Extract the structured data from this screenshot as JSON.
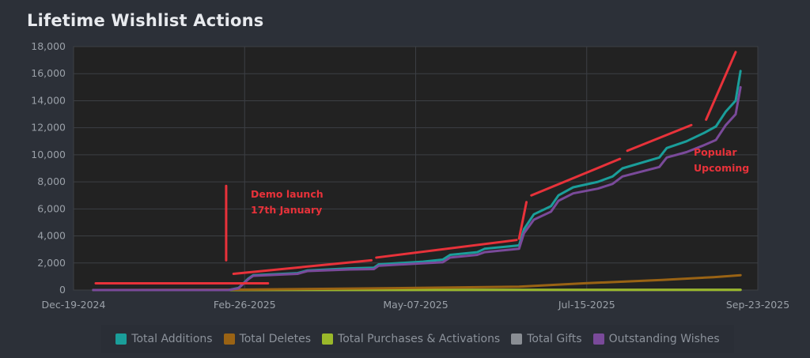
{
  "title": "Lifetime Wishlist Actions",
  "chart_data": {
    "type": "line",
    "title": "Lifetime Wishlist Actions",
    "y_ticks": [
      "0",
      "2,000",
      "4,000",
      "6,000",
      "8,000",
      "10,000",
      "12,000",
      "14,000",
      "16,000",
      "18,000"
    ],
    "ylim": [
      0,
      18000
    ],
    "x_ticks": [
      "Dec-19-2024",
      "Feb-26-2025",
      "May-07-2025",
      "Jul-15-2025",
      "Sep-23-2025"
    ],
    "xlim": [
      "2024-12-19",
      "2025-09-23"
    ],
    "grid": true,
    "legend_position": "bottom",
    "series": [
      {
        "name": "Total Additions",
        "color": "#1a9e9a",
        "points": [
          [
            "2024-12-27",
            0
          ],
          [
            "2025-02-20",
            0
          ],
          [
            "2025-02-24",
            150
          ],
          [
            "2025-02-28",
            850
          ],
          [
            "2025-03-02",
            1100
          ],
          [
            "2025-03-20",
            1250
          ],
          [
            "2025-03-24",
            1450
          ],
          [
            "2025-04-10",
            1600
          ],
          [
            "2025-04-20",
            1650
          ],
          [
            "2025-04-22",
            1900
          ],
          [
            "2025-05-10",
            2100
          ],
          [
            "2025-05-18",
            2250
          ],
          [
            "2025-05-21",
            2600
          ],
          [
            "2025-06-01",
            2800
          ],
          [
            "2025-06-04",
            3050
          ],
          [
            "2025-06-18",
            3300
          ],
          [
            "2025-06-20",
            4500
          ],
          [
            "2025-06-24",
            5600
          ],
          [
            "2025-07-01",
            6200
          ],
          [
            "2025-07-04",
            7000
          ],
          [
            "2025-07-10",
            7600
          ],
          [
            "2025-07-20",
            8000
          ],
          [
            "2025-07-26",
            8400
          ],
          [
            "2025-07-30",
            9000
          ],
          [
            "2025-08-14",
            9800
          ],
          [
            "2025-08-17",
            10500
          ],
          [
            "2025-08-25",
            11000
          ],
          [
            "2025-09-01",
            11600
          ],
          [
            "2025-09-06",
            12100
          ],
          [
            "2025-09-10",
            13200
          ],
          [
            "2025-09-14",
            14000
          ],
          [
            "2025-09-16",
            16200
          ]
        ]
      },
      {
        "name": "Total Deletes",
        "color": "#9a6314",
        "points": [
          [
            "2024-12-27",
            0
          ],
          [
            "2025-02-24",
            30
          ],
          [
            "2025-04-20",
            120
          ],
          [
            "2025-06-18",
            250
          ],
          [
            "2025-07-15",
            500
          ],
          [
            "2025-08-15",
            750
          ],
          [
            "2025-09-05",
            950
          ],
          [
            "2025-09-16",
            1100
          ]
        ]
      },
      {
        "name": "Total Purchases & Activations",
        "color": "#9ab82a",
        "points": [
          [
            "2024-12-27",
            0
          ],
          [
            "2025-09-16",
            20
          ]
        ]
      },
      {
        "name": "Total Gifts",
        "color": "#8a8e94",
        "points": [
          [
            "2024-12-27",
            0
          ],
          [
            "2025-09-16",
            10
          ]
        ]
      },
      {
        "name": "Outstanding Wishes",
        "color": "#7a4a9a",
        "points": [
          [
            "2024-12-27",
            0
          ],
          [
            "2025-02-20",
            0
          ],
          [
            "2025-02-24",
            120
          ],
          [
            "2025-02-28",
            800
          ],
          [
            "2025-03-02",
            1050
          ],
          [
            "2025-03-20",
            1200
          ],
          [
            "2025-03-24",
            1400
          ],
          [
            "2025-04-10",
            1520
          ],
          [
            "2025-04-20",
            1550
          ],
          [
            "2025-04-22",
            1800
          ],
          [
            "2025-05-10",
            1980
          ],
          [
            "2025-05-18",
            2050
          ],
          [
            "2025-05-21",
            2400
          ],
          [
            "2025-06-01",
            2600
          ],
          [
            "2025-06-04",
            2800
          ],
          [
            "2025-06-18",
            3050
          ],
          [
            "2025-06-20",
            4200
          ],
          [
            "2025-06-24",
            5200
          ],
          [
            "2025-07-01",
            5800
          ],
          [
            "2025-07-04",
            6600
          ],
          [
            "2025-07-10",
            7150
          ],
          [
            "2025-07-20",
            7500
          ],
          [
            "2025-07-26",
            7850
          ],
          [
            "2025-07-30",
            8400
          ],
          [
            "2025-08-14",
            9100
          ],
          [
            "2025-08-17",
            9800
          ],
          [
            "2025-08-25",
            10200
          ],
          [
            "2025-09-01",
            10700
          ],
          [
            "2025-09-06",
            11100
          ],
          [
            "2025-09-10",
            12200
          ],
          [
            "2025-09-14",
            13000
          ],
          [
            "2025-09-16",
            15000
          ]
        ]
      }
    ],
    "annotations": [
      {
        "lines": [
          "Demo launch",
          "17th January"
        ]
      },
      {
        "lines": [
          "Popular",
          "Upcoming"
        ]
      }
    ],
    "annotation_marks": [
      {
        "from": [
          "2024-12-28",
          500
        ],
        "to": [
          "2025-03-08",
          500
        ]
      },
      {
        "from": [
          "2025-02-19",
          2200
        ],
        "to": [
          "2025-02-19",
          7700
        ]
      },
      {
        "from": [
          "2025-02-22",
          1200
        ],
        "to": [
          "2025-04-19",
          2200
        ]
      },
      {
        "from": [
          "2025-04-21",
          2400
        ],
        "to": [
          "2025-06-17",
          3700
        ]
      },
      {
        "from": [
          "2025-06-18",
          3800
        ],
        "to": [
          "2025-06-21",
          6500
        ]
      },
      {
        "from": [
          "2025-06-23",
          7000
        ],
        "to": [
          "2025-07-29",
          9700
        ]
      },
      {
        "from": [
          "2025-08-01",
          10300
        ],
        "to": [
          "2025-08-27",
          12200
        ]
      },
      {
        "from": [
          "2025-09-02",
          12600
        ],
        "to": [
          "2025-09-14",
          17600
        ]
      }
    ],
    "annotation_color": "#e8323a"
  }
}
